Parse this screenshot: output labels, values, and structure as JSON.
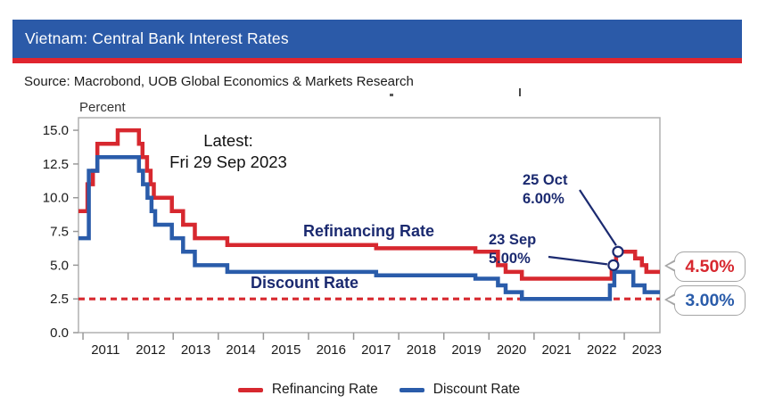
{
  "header": {
    "title": "Vietnam: Central Bank Interest Rates",
    "source": "Source: Macrobond, UOB Global Economics & Markets Research"
  },
  "colors": {
    "header_bg": "#2b5aa8",
    "accent_stripe": "#e0252e",
    "line_red": "#d7282f",
    "line_blue": "#2a5caa",
    "navy_text": "#1b2a70",
    "frame_gray": "#b0b0b0"
  },
  "chart_data": {
    "type": "line",
    "subtype": "step",
    "ylabel": "Percent",
    "ylim": [
      0,
      15.93
    ],
    "yticks": [
      0.0,
      2.5,
      5.0,
      7.5,
      10.0,
      12.5,
      15.0
    ],
    "xlim": [
      2010.9,
      2023.79
    ],
    "year_ticks": [
      2011,
      2012,
      2013,
      2014,
      2015,
      2016,
      2017,
      2018,
      2019,
      2020,
      2021,
      2022,
      2023
    ],
    "grid": false,
    "legend_position": "bottom",
    "reference_line": {
      "y": 2.5,
      "style": "dashed",
      "color": "#d7282f"
    },
    "series": [
      {
        "name": "Refinancing Rate",
        "color": "#d7282f",
        "end_label": "4.50%",
        "points": [
          [
            2010.9,
            9.0
          ],
          [
            2011.1,
            11.0
          ],
          [
            2011.22,
            12.0
          ],
          [
            2011.32,
            14.0
          ],
          [
            2011.77,
            15.0
          ],
          [
            2012.24,
            14.0
          ],
          [
            2012.32,
            13.0
          ],
          [
            2012.42,
            12.0
          ],
          [
            2012.5,
            11.0
          ],
          [
            2012.57,
            10.0
          ],
          [
            2012.97,
            9.0
          ],
          [
            2013.22,
            8.0
          ],
          [
            2013.48,
            7.0
          ],
          [
            2014.2,
            6.5
          ],
          [
            2017.5,
            6.25
          ],
          [
            2019.7,
            6.0
          ],
          [
            2020.2,
            5.0
          ],
          [
            2020.37,
            4.5
          ],
          [
            2020.73,
            4.0
          ],
          [
            2022.72,
            5.0
          ],
          [
            2022.82,
            6.0
          ],
          [
            2023.24,
            5.5
          ],
          [
            2023.39,
            5.0
          ],
          [
            2023.49,
            4.5
          ],
          [
            2023.79,
            4.5
          ]
        ]
      },
      {
        "name": "Discount Rate",
        "color": "#2a5caa",
        "end_label": "3.00%",
        "points": [
          [
            2010.9,
            7.0
          ],
          [
            2011.13,
            12.0
          ],
          [
            2011.32,
            13.0
          ],
          [
            2012.24,
            12.0
          ],
          [
            2012.33,
            11.0
          ],
          [
            2012.43,
            10.0
          ],
          [
            2012.52,
            9.0
          ],
          [
            2012.6,
            8.0
          ],
          [
            2012.97,
            7.0
          ],
          [
            2013.22,
            6.0
          ],
          [
            2013.48,
            5.0
          ],
          [
            2014.2,
            4.5
          ],
          [
            2017.5,
            4.25
          ],
          [
            2019.7,
            4.0
          ],
          [
            2020.2,
            3.5
          ],
          [
            2020.37,
            3.0
          ],
          [
            2020.73,
            2.5
          ],
          [
            2022.68,
            3.5
          ],
          [
            2022.78,
            4.5
          ],
          [
            2023.2,
            3.5
          ],
          [
            2023.45,
            3.0
          ],
          [
            2023.79,
            3.0
          ]
        ]
      }
    ],
    "markers": [
      {
        "x": 2022.76,
        "value": 5.0,
        "label": "23 Sep 5.00%"
      },
      {
        "x": 2022.86,
        "value": 6.0,
        "label": "25 Oct 6.00%"
      }
    ],
    "annotations": {
      "latest": {
        "line1": "Latest:",
        "line2": "Fri 29 Sep 2023"
      },
      "oct": {
        "line1": "25 Oct",
        "line2": "6.00%"
      },
      "sep": {
        "line1": "23 Sep",
        "line2": "5.00%"
      }
    }
  }
}
